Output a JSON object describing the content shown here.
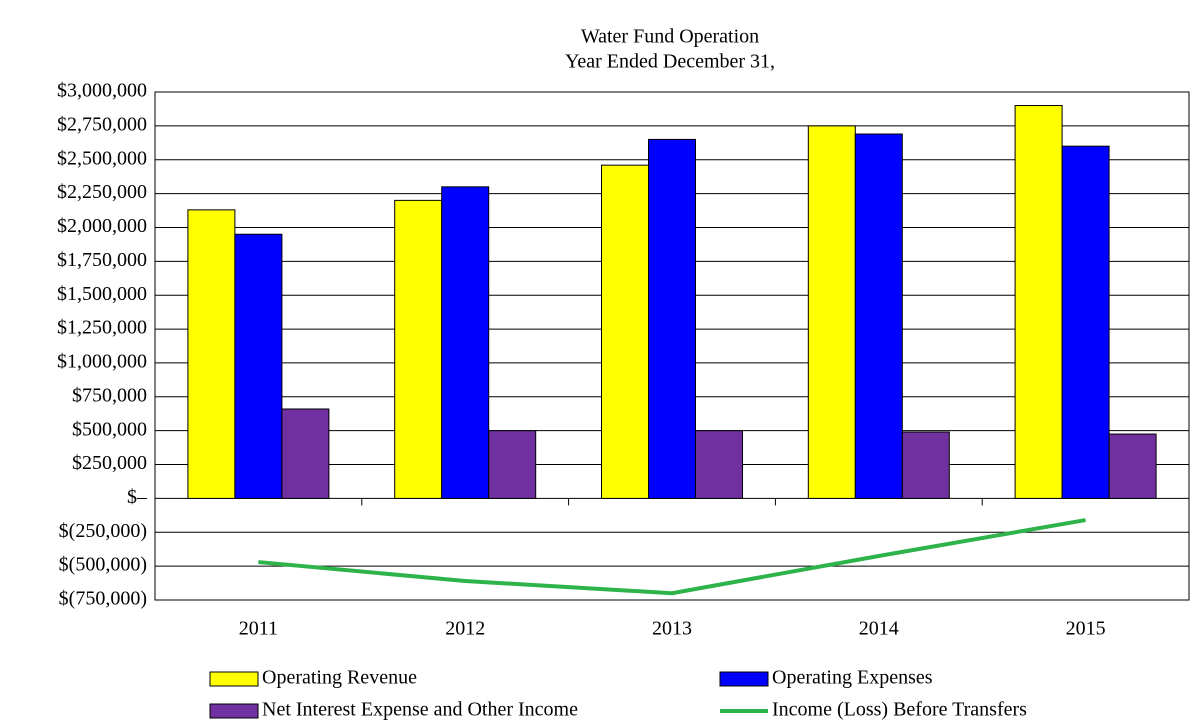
{
  "chart_data": {
    "type": "bar",
    "title": "Water Fund Operation",
    "subtitle": "Year Ended December 31,",
    "categories": [
      "2011",
      "2012",
      "2013",
      "2014",
      "2015"
    ],
    "series": [
      {
        "name": "Operating Revenue",
        "color": "#ffff00",
        "values": [
          2130000,
          2200000,
          2460000,
          2750000,
          2900000
        ]
      },
      {
        "name": "Operating Expenses",
        "color": "#0000ff",
        "values": [
          1950000,
          2300000,
          2650000,
          2690000,
          2600000
        ]
      },
      {
        "name": "Net Interest Expense and Other Income",
        "color": "#7030a0",
        "values": [
          660000,
          500000,
          500000,
          490000,
          475000
        ]
      },
      {
        "name": "Income (Loss) Before Transfers",
        "color": "#2db34a",
        "type": "line",
        "values": [
          -470000,
          -610000,
          -700000,
          -425000,
          -160000
        ]
      }
    ],
    "ylim": [
      -750000,
      3000000
    ],
    "yticks": [
      {
        "value": 3000000,
        "label": "$3,000,000"
      },
      {
        "value": 2750000,
        "label": "$2,750,000"
      },
      {
        "value": 2500000,
        "label": "$2,500,000"
      },
      {
        "value": 2250000,
        "label": "$2,250,000"
      },
      {
        "value": 2000000,
        "label": "$2,000,000"
      },
      {
        "value": 1750000,
        "label": "$1,750,000"
      },
      {
        "value": 1500000,
        "label": "$1,500,000"
      },
      {
        "value": 1250000,
        "label": "$1,250,000"
      },
      {
        "value": 1000000,
        "label": "$1,000,000"
      },
      {
        "value": 750000,
        "label": "$750,000"
      },
      {
        "value": 500000,
        "label": "$500,000"
      },
      {
        "value": 250000,
        "label": "$250,000"
      },
      {
        "value": 0,
        "label": "$–"
      },
      {
        "value": -250000,
        "label": "$(250,000)"
      },
      {
        "value": -500000,
        "label": "$(500,000)"
      },
      {
        "value": -750000,
        "label": "$(750,000)"
      }
    ],
    "grid": true
  }
}
